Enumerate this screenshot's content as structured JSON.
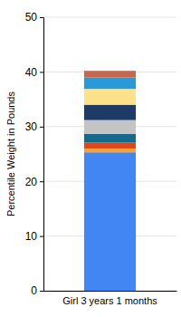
{
  "chart_data": {
    "type": "bar",
    "stacked": true,
    "grid": true,
    "ylabel": "Percentile Weight in Pounds",
    "categories": [
      "Girl 3 years 1 months"
    ],
    "ylim": [
      0,
      50
    ],
    "yticks": [
      0,
      10,
      20,
      30,
      40,
      50
    ],
    "series": [
      {
        "color": "#4286f4",
        "values": [
          25.3
        ]
      },
      {
        "color": "#f2a33a",
        "values": [
          0.7
        ]
      },
      {
        "color": "#e0461a",
        "values": [
          1.1
        ]
      },
      {
        "color": "#17698a",
        "values": [
          1.6
        ]
      },
      {
        "color": "#c4c4c4",
        "values": [
          2.5
        ]
      },
      {
        "color": "#1e3a66",
        "values": [
          2.8
        ]
      },
      {
        "color": "#fde28c",
        "values": [
          2.9
        ]
      },
      {
        "color": "#2a9ad6",
        "values": [
          2.1
        ]
      },
      {
        "color": "#c4684f",
        "values": [
          1.2
        ]
      }
    ]
  }
}
